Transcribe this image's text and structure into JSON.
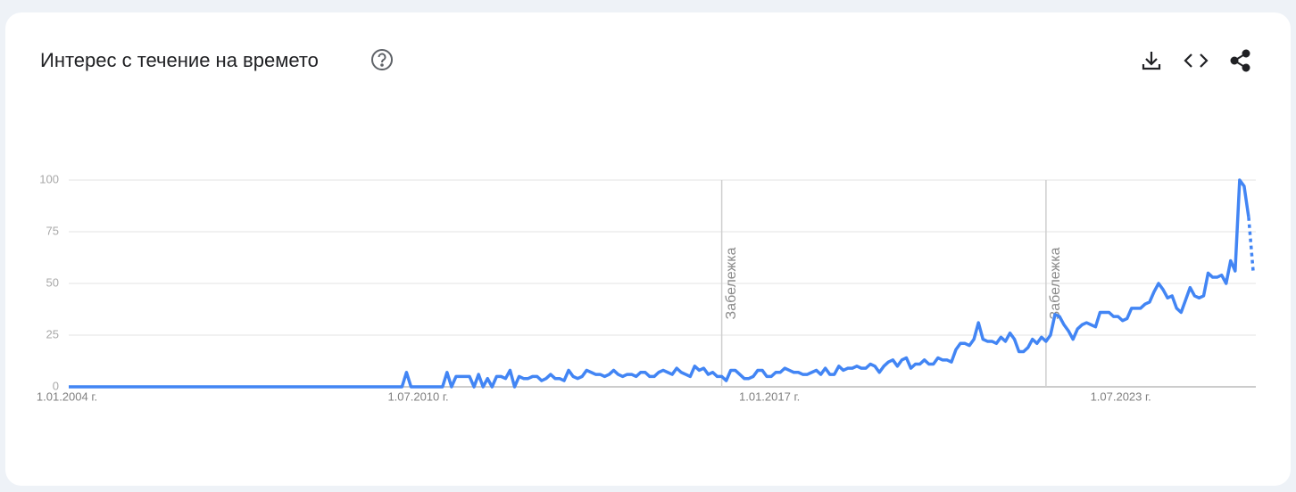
{
  "chart_data": {
    "type": "line",
    "title": "Интерес с течение на времето",
    "categories": [
      "1.01.2004 г.",
      null,
      null,
      null,
      null,
      null,
      null,
      null,
      null,
      null,
      null,
      null,
      null,
      null,
      null,
      null,
      null,
      null,
      null,
      null,
      null,
      null,
      null,
      null,
      null,
      null,
      null,
      null,
      null,
      null,
      null,
      null,
      null,
      null,
      null,
      null,
      null,
      null,
      null,
      null,
      null,
      null,
      null,
      null,
      null,
      null,
      null,
      null,
      null,
      null,
      null,
      null,
      null,
      null,
      null,
      null,
      null,
      null,
      null,
      null,
      null,
      null,
      null,
      null,
      null,
      null,
      null,
      null,
      null,
      null,
      null,
      null,
      null,
      null,
      null,
      null,
      null,
      null,
      "1.07.2010 г.",
      null,
      null,
      null,
      null,
      null,
      null,
      null,
      null,
      null,
      null,
      null,
      null,
      null,
      null,
      null,
      null,
      null,
      null,
      null,
      null,
      null,
      null,
      null,
      null,
      null,
      null,
      null,
      null,
      null,
      null,
      null,
      null,
      null,
      null,
      null,
      null,
      null,
      null,
      null,
      null,
      null,
      null,
      null,
      null,
      null,
      null,
      null,
      null,
      null,
      null,
      null,
      null,
      null,
      null,
      null,
      null,
      null,
      null,
      null,
      null,
      null,
      null,
      null,
      null,
      null,
      null,
      null,
      null,
      null,
      null,
      null,
      null,
      null,
      null,
      null,
      null,
      null,
      "1.01.2017 г.",
      null,
      null,
      null,
      null,
      null,
      null,
      null,
      null,
      null,
      null,
      null,
      null,
      null,
      null,
      null,
      null,
      null,
      null,
      null,
      null,
      null,
      null,
      null,
      null,
      null,
      null,
      null,
      null,
      null,
      null,
      null,
      null,
      null,
      null,
      null,
      null,
      null,
      null,
      null,
      null,
      null,
      null,
      null,
      null,
      null,
      null,
      null,
      null,
      null,
      null,
      null,
      null,
      null,
      null,
      null,
      null,
      null,
      null,
      null,
      null,
      null,
      null,
      null,
      null,
      null,
      null,
      null,
      null,
      null,
      null,
      null,
      null,
      null,
      null,
      null,
      null,
      null,
      "1.07.2023 г.",
      null,
      null,
      null,
      null,
      null,
      null,
      null,
      null,
      null,
      null,
      null,
      null,
      null,
      null,
      null,
      null,
      null,
      null,
      null,
      null,
      null,
      null,
      null,
      null,
      null,
      null,
      null,
      null,
      null
    ],
    "series": [
      {
        "name": "Интерес",
        "color": "#4285f4",
        "values": [
          0,
          0,
          0,
          0,
          0,
          0,
          0,
          0,
          0,
          0,
          0,
          0,
          0,
          0,
          0,
          0,
          0,
          0,
          0,
          0,
          0,
          0,
          0,
          0,
          0,
          0,
          0,
          0,
          0,
          0,
          0,
          0,
          0,
          0,
          0,
          0,
          0,
          0,
          0,
          0,
          0,
          0,
          0,
          0,
          0,
          0,
          0,
          0,
          0,
          0,
          0,
          0,
          0,
          0,
          0,
          0,
          0,
          0,
          0,
          0,
          0,
          0,
          0,
          0,
          0,
          0,
          0,
          0,
          0,
          0,
          0,
          0,
          0,
          0,
          0,
          7,
          0,
          0,
          0,
          0,
          0,
          0,
          0,
          0,
          7,
          0,
          5,
          5,
          5,
          5,
          0,
          6,
          0,
          4,
          0,
          5,
          5,
          4,
          8,
          0,
          5,
          4,
          4,
          5,
          5,
          3,
          4,
          6,
          4,
          4,
          3,
          8,
          5,
          4,
          5,
          8,
          7,
          6,
          6,
          5,
          6,
          8,
          6,
          5,
          6,
          6,
          5,
          7,
          7,
          5,
          5,
          7,
          8,
          7,
          6,
          9,
          7,
          6,
          5,
          10,
          8,
          9,
          6,
          7,
          5,
          5,
          3,
          8,
          8,
          6,
          4,
          4,
          5,
          8,
          8,
          5,
          5,
          7,
          7,
          9,
          8,
          7,
          7,
          6,
          6,
          7,
          8,
          6,
          9,
          6,
          6,
          10,
          8,
          9,
          9,
          10,
          9,
          9,
          11,
          10,
          7,
          10,
          12,
          13,
          10,
          13,
          14,
          9,
          11,
          11,
          13,
          11,
          11,
          14,
          13,
          13,
          12,
          18,
          21,
          21,
          20,
          23,
          31,
          23,
          22,
          22,
          21,
          24,
          22,
          26,
          23,
          17,
          17,
          19,
          23,
          21,
          24,
          22,
          25,
          35,
          34,
          30,
          27,
          23,
          28,
          30,
          31,
          30,
          29,
          36,
          36,
          36,
          34,
          34,
          32,
          33,
          38,
          38,
          38,
          40,
          41,
          46,
          50,
          47,
          43,
          44,
          38,
          36,
          42,
          48,
          44,
          43,
          44,
          55,
          53,
          53,
          54,
          50,
          61,
          56,
          100,
          97,
          82,
          56
        ]
      }
    ],
    "ylim": [
      0,
      100
    ],
    "yticks": [
      0,
      25,
      50,
      75,
      100
    ],
    "grid": true,
    "annotations": [
      {
        "label": "Забележка",
        "at": 145
      },
      {
        "label": "Забележка",
        "at": 217
      }
    ]
  }
}
